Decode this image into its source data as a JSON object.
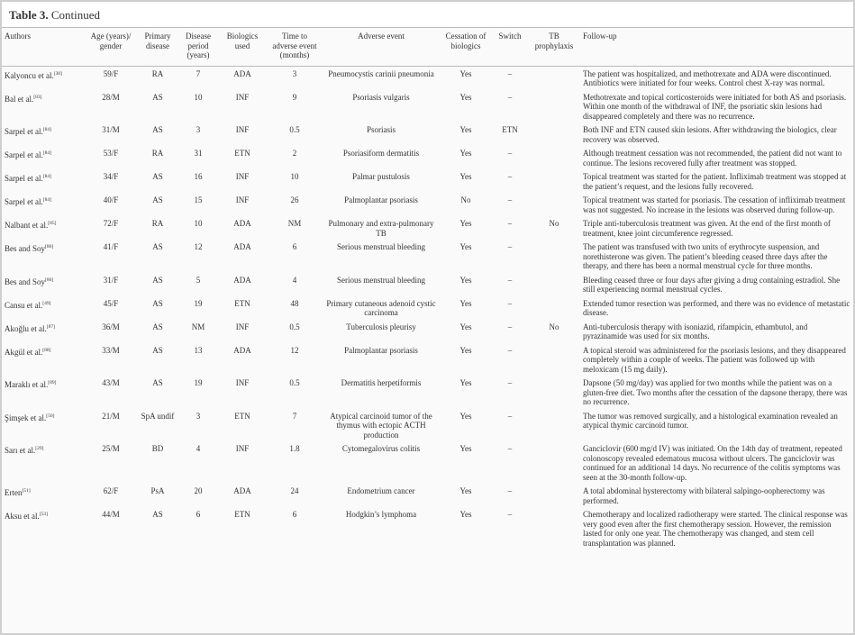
{
  "header": {
    "label": "Table 3.",
    "title": "Continued"
  },
  "table": {
    "columns": [
      "Authors",
      "Age (years)/ gender",
      "Primary disease",
      "Disease period (years)",
      "Biologics used",
      "Time to adverse event (months)",
      "Adverse event",
      "Cessation of biologics",
      "Switch",
      "TB prophylaxis",
      "Follow-up"
    ],
    "rows": [
      {
        "author": "Kalyoncu et al.",
        "ref": "[30]",
        "cells": [
          "59/F",
          "RA",
          "7",
          "ADA",
          "3",
          "Pneumocystis carinii pneumonia",
          "Yes",
          "–",
          null,
          "The patient was hospitalized, and methotrexate and ADA were discontinued. Antibiotics were initiated for four weeks. Control chest X-ray was normal."
        ]
      },
      {
        "author": "Bal et al.",
        "ref": "[83]",
        "cells": [
          "28/M",
          "AS",
          "10",
          "INF",
          "9",
          "Psoriasis vulgaris",
          "Yes",
          "–",
          null,
          "Methotrexate and topical corticosteroids were initiated for both AS and psoriasis. Within one month of the withdrawal of INF, the psoriatic skin lesions had disappeared completely and there was no recurrence."
        ]
      },
      {
        "author": "Sarpel et al.",
        "ref": "[84]",
        "cells": [
          "31/M",
          "AS",
          "3",
          "INF",
          "0.5",
          "Psoriasis",
          "Yes",
          "ETN",
          null,
          "Both INF and ETN caused skin lesions. After withdrawing the biologics, clear recovery was observed."
        ]
      },
      {
        "author": "Sarpel et al.",
        "ref": "[84]",
        "cells": [
          "53/F",
          "RA",
          "31",
          "ETN",
          "2",
          "Psoriasiform dermatitis",
          "Yes",
          "–",
          null,
          "Although treatment cessation was not recommended, the patient did not want to continue. The lesions recovered fully after treatment was stopped."
        ]
      },
      {
        "author": "Sarpel et al.",
        "ref": "[84]",
        "cells": [
          "34/F",
          "AS",
          "16",
          "INF",
          "10",
          "Palmar pustulosis",
          "Yes",
          "–",
          null,
          "Topical treatment was started for the patient. Infliximab treatment was stopped at the patient’s request, and the lesions fully recovered."
        ]
      },
      {
        "author": "Sarpel et al.",
        "ref": "[84]",
        "cells": [
          "40/F",
          "AS",
          "15",
          "INF",
          "26",
          "Palmoplantar psoriasis",
          "No",
          "–",
          null,
          "Topical treatment was started for psoriasis. The cessation of infliximab treatment was not suggested. No increase in the lesions was observed during follow-up."
        ]
      },
      {
        "author": "Nalbant et al.",
        "ref": "[85]",
        "cells": [
          "72/F",
          "RA",
          "10",
          "ADA",
          "NM",
          "Pulmonary and extra-pulmonary TB",
          "Yes",
          "–",
          "No",
          "Triple anti-tuberculosis treatment was given. At the end of the first month of treatment, knee joint circumference regressed."
        ]
      },
      {
        "author": "Bes and Soy",
        "ref": "[86]",
        "cells": [
          "41/F",
          "AS",
          "12",
          "ADA",
          "6",
          "Serious menstrual bleeding",
          "Yes",
          "–",
          null,
          "The patient was transfused with two units of erythrocyte suspension, and norethisterone was given. The patient’s bleeding ceased three days after the therapy, and there has been a normal menstrual cycle for three months."
        ]
      },
      {
        "author": "Bes and Soy",
        "ref": "[86]",
        "cells": [
          "31/F",
          "AS",
          "5",
          "ADA",
          "4",
          "Serious menstrual bleeding",
          "Yes",
          "–",
          null,
          "Bleeding ceased three or four days after giving a drug containing estradiol. She still experiencing normal menstrual cycles."
        ]
      },
      {
        "author": "Cansu et al.",
        "ref": "[49]",
        "cells": [
          "45/F",
          "AS",
          "19",
          "ETN",
          "48",
          "Primary cutaneous adenoid cystic carcinoma",
          "Yes",
          "–",
          null,
          "Extended tumor resection was performed, and there was no evidence of metastatic disease."
        ]
      },
      {
        "author": "Akoğlu et al.",
        "ref": "[87]",
        "cells": [
          "36/M",
          "AS",
          "NM",
          "INF",
          "0.5",
          "Tuberculosis pleurisy",
          "Yes",
          "–",
          "No",
          "Anti-tuberculosis therapy with isoniazid, rifampicin, ethambutol, and pyrazinamide was used for six months."
        ]
      },
      {
        "author": "Akgül et al.",
        "ref": "[88]",
        "cells": [
          "33/M",
          "AS",
          "13",
          "ADA",
          "12",
          "Palmoplantar psoriasis",
          "Yes",
          "–",
          null,
          "A topical steroid was administered for the psoriasis lesions, and they disappeared completely within a couple of weeks. The patient was followed up with meloxicam (15 mg daily)."
        ]
      },
      {
        "author": "Maraklı et al.",
        "ref": "[89]",
        "cells": [
          "43/M",
          "AS",
          "19",
          "INF",
          "0.5",
          "Dermatitis herpetiformis",
          "Yes",
          "–",
          null,
          "Dapsone (50 mg/day) was applied for two months while the patient was on a gluten-free diet. Two months after the cessation of the dapsone therapy, there was no recurrence."
        ]
      },
      {
        "author": "Şimşek et al.",
        "ref": "[50]",
        "cells": [
          "21/M",
          "SpA undif",
          "3",
          "ETN",
          "7",
          "Atypical carcinoid tumor of the thymus with ectopic ACTH production",
          "Yes",
          "–",
          null,
          "The tumor was removed surgically, and a histological examination revealed an atypical thymic carcinoid tumor."
        ]
      },
      {
        "author": "Sarı et al.",
        "ref": "[29]",
        "cells": [
          "25/M",
          "BD",
          "4",
          "INF",
          "1.8",
          "Cytomegalovirus colitis",
          "Yes",
          "–",
          null,
          "Ganciclovir (600 mg/d IV) was initiated. On the 14th day of treatment, repeated colonoscopy revealed edematous mucosa without ulcers. The ganciclovir was continued for an additional 14 days. No recurrence of the colitis symptoms was seen at the 30-month follow-up."
        ]
      },
      {
        "author": "Erten",
        "ref": "[51]",
        "cells": [
          "62/F",
          "PsA",
          "20",
          "ADA",
          "24",
          "Endometrium cancer",
          "Yes",
          "–",
          null,
          "A total abdominal hysterectomy with bilateral salpingo-oopherectomy was performed."
        ]
      },
      {
        "author": "Aksu et al.",
        "ref": "[53]",
        "cells": [
          "44/M",
          "AS",
          "6",
          "ETN",
          "6",
          "Hodgkin’s lymphoma",
          "Yes",
          "–",
          null,
          "Chemotherapy and localized radiotherapy were started. The clinical response was very good even after the first chemotherapy session. However, the remission lasted for only one year. The chemotherapy was changed, and stem cell transplantation was planned."
        ]
      }
    ]
  }
}
